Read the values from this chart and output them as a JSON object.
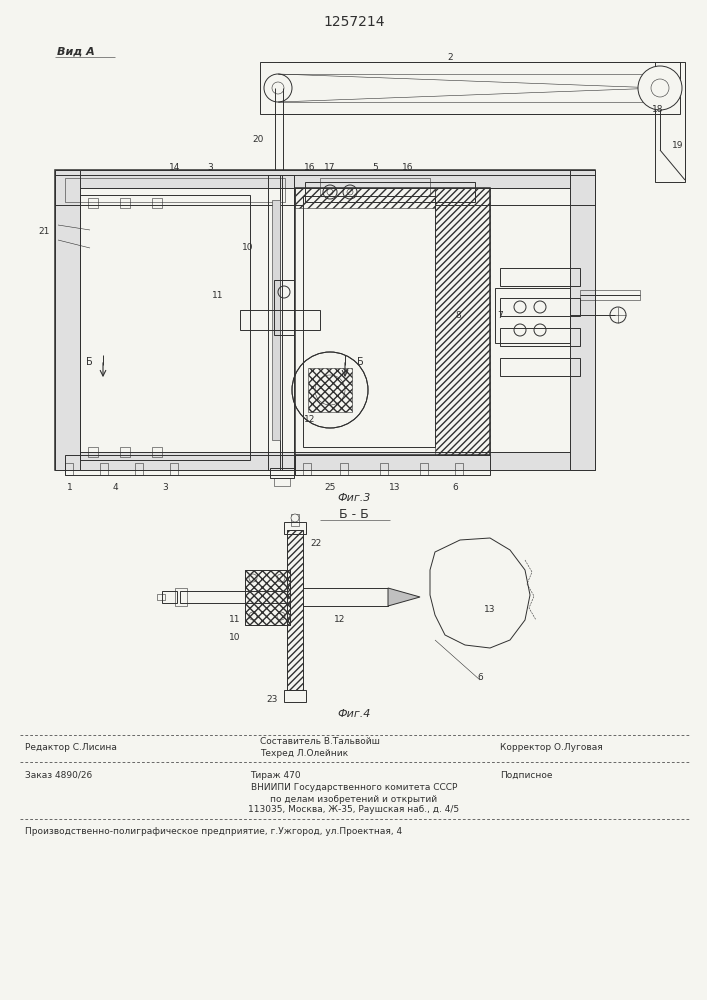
{
  "patent_number": "1257214",
  "bg": "#f5f5f0",
  "lc": "#303030",
  "fig_width": 7.07,
  "fig_height": 10.0,
  "view_a_label": "Вид А",
  "section_bb_label": "Б - Б",
  "fig3_label": "Фиг.3",
  "fig4_label": "Фиг.4",
  "footer_line1_left": "Редактор С.Лисина",
  "footer_line1_ctop": "Составитель В.Тальвойш",
  "footer_line1_cbot": "Техред Л.Олейник",
  "footer_line1_right": "Корректор О.Луговая",
  "footer_line2_left": "Заказ 4890/26",
  "footer_line2_cen": "Тираж 470",
  "footer_line2_right": "Подписное",
  "footer_line3": "ВНИИПИ Государственного комитета СССР",
  "footer_line4": "по делам изобретений и открытий",
  "footer_line5": "113035, Москва, Ж-35, Раушская наб., д. 4/5",
  "footer_line6": "Производственно-полиграфическое предприятие, г.Ужгород, ул.Проектная, 4"
}
